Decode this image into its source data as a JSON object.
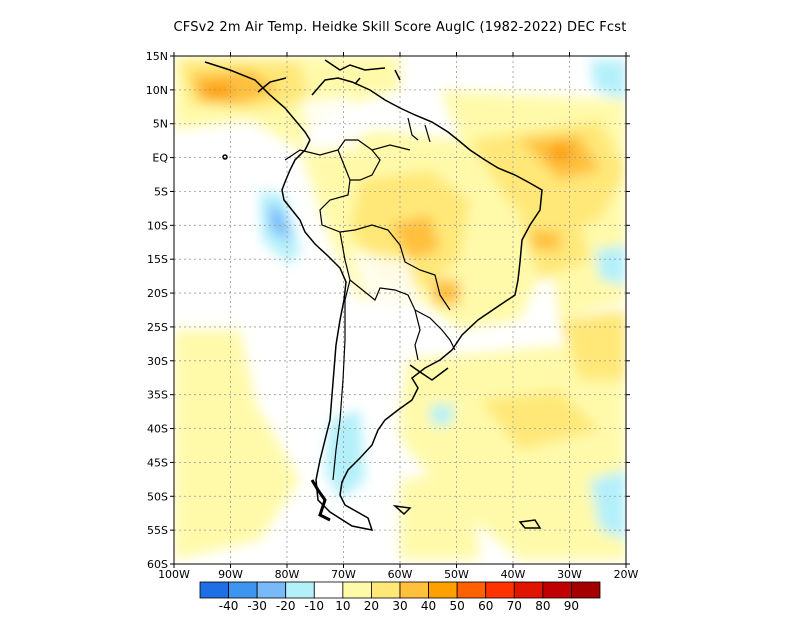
{
  "title": "CFSv2  2m Air Temp. Heidke Skill Score AugIC (1982-2022) DEC Fcst",
  "lat_labels": [
    "15N",
    "10N",
    "5N",
    "EQ",
    "5S",
    "10S",
    "15S",
    "20S",
    "25S",
    "30S",
    "35S",
    "40S",
    "45S",
    "50S",
    "55S",
    "60S"
  ],
  "lon_labels": [
    "100W",
    "90W",
    "80W",
    "70W",
    "60W",
    "50W",
    "40W",
    "30W",
    "20W"
  ],
  "colorbar": {
    "labels": [
      "-40",
      "-30",
      "-20",
      "-10",
      "10",
      "20",
      "30",
      "40",
      "50",
      "60",
      "70",
      "80",
      "90"
    ],
    "colors": [
      "#1e6ee6",
      "#3c96f0",
      "#78b9fa",
      "#b4f0fa",
      "#ffffff",
      "#fffaaa",
      "#ffe878",
      "#ffc03c",
      "#ffa000",
      "#ff6000",
      "#ff3200",
      "#e11400",
      "#c00000",
      "#a50000"
    ]
  }
}
